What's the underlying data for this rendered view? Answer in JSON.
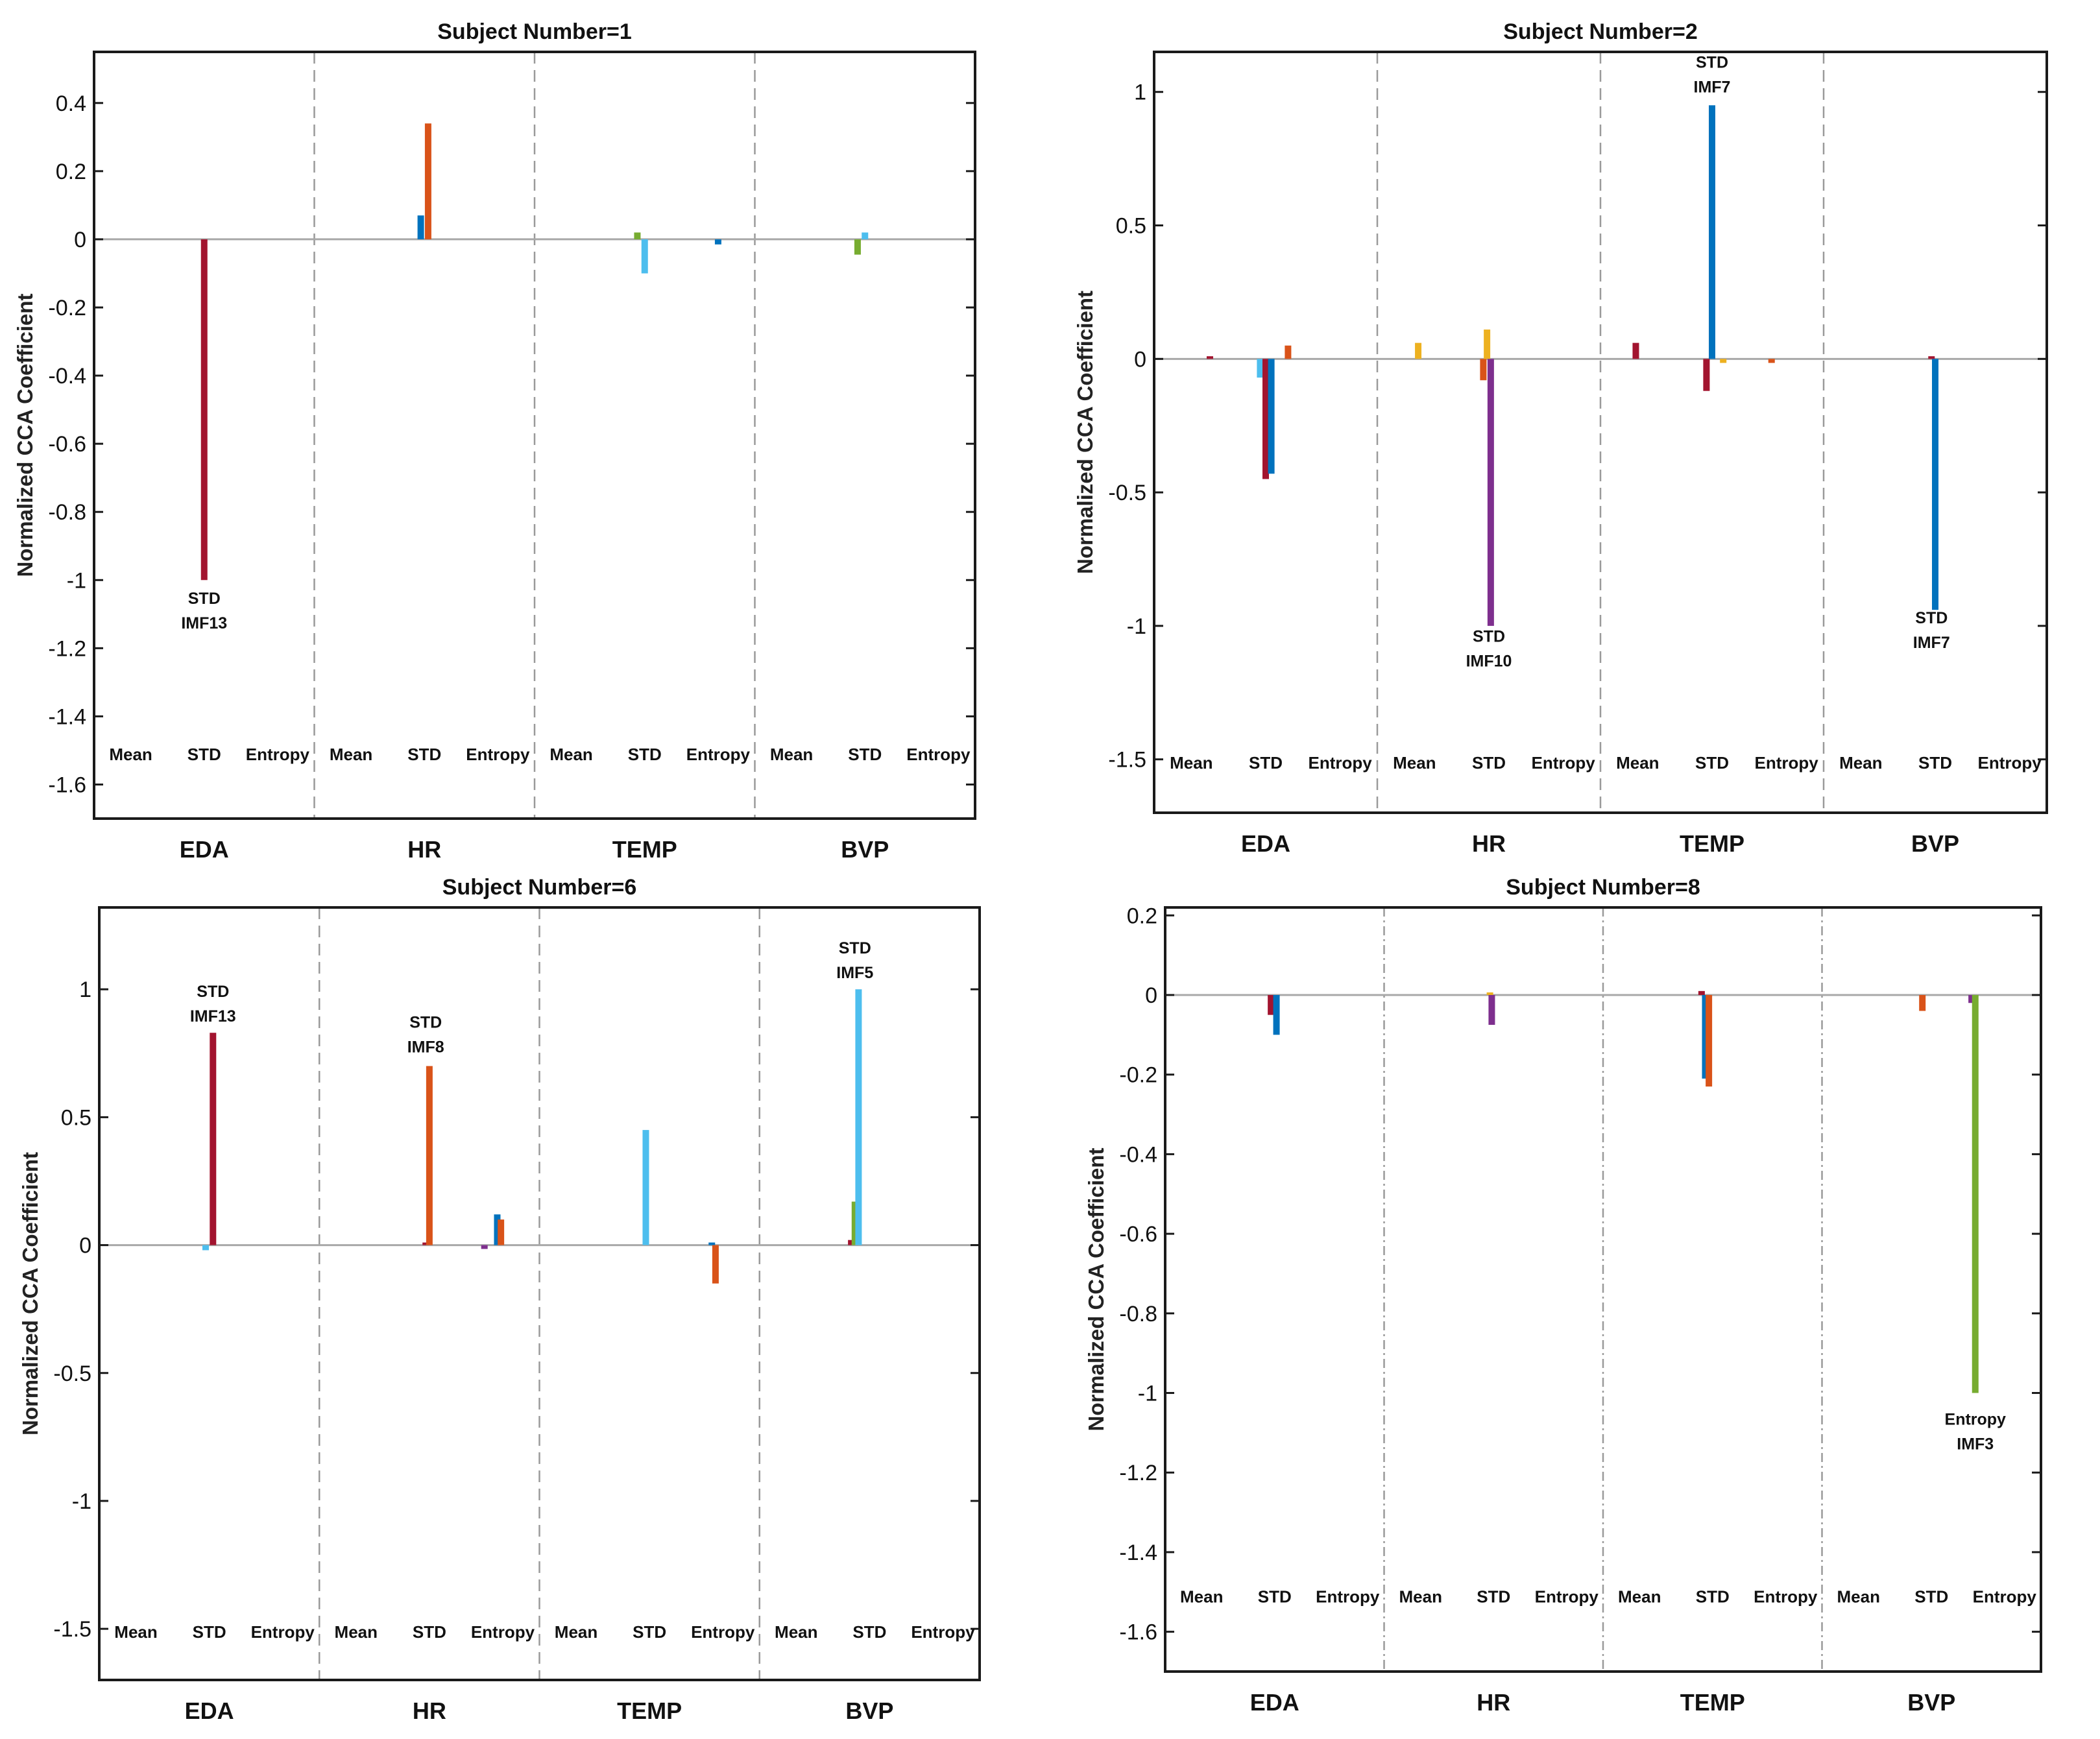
{
  "chart_data": [
    {
      "type": "bar",
      "title": "Subject Number=1",
      "ylabel": "Normalized CCA Coefficient",
      "ylim": [
        -1.7,
        0.55
      ],
      "yticks": [
        0.4,
        0.2,
        0,
        -0.2,
        -0.4,
        -0.6,
        -0.8,
        -1,
        -1.2,
        -1.4,
        -1.6
      ],
      "ytick_labels": [
        "0.4",
        "0.2",
        "0",
        "-0.2",
        "-0.4",
        "-0.6",
        "-0.8",
        "-1",
        "-1.2",
        "-1.4",
        "-1.6"
      ],
      "groups": [
        "EDA",
        "HR",
        "TEMP",
        "BVP"
      ],
      "features": [
        "Mean",
        "STD",
        "Entropy"
      ],
      "feature_label_y": -1.51,
      "separators": "dashed",
      "bars": [
        {
          "group": 0,
          "feature": 1,
          "pos": 0.0,
          "value": -1.0,
          "color": "#A2142F"
        },
        {
          "group": 1,
          "feature": 1,
          "pos": -0.1,
          "value": 0.07,
          "color": "#0072BD"
        },
        {
          "group": 1,
          "feature": 1,
          "pos": 0.1,
          "value": 0.34,
          "color": "#D95319"
        },
        {
          "group": 2,
          "feature": 1,
          "pos": -0.2,
          "value": 0.02,
          "color": "#77AC30"
        },
        {
          "group": 2,
          "feature": 1,
          "pos": 0.0,
          "value": -0.1,
          "color": "#4DBEEE"
        },
        {
          "group": 2,
          "feature": 2,
          "pos": 0.0,
          "value": -0.015,
          "color": "#0072BD"
        },
        {
          "group": 3,
          "feature": 1,
          "pos": -0.2,
          "value": -0.045,
          "color": "#77AC30"
        },
        {
          "group": 3,
          "feature": 1,
          "pos": 0.0,
          "value": 0.02,
          "color": "#4DBEEE"
        }
      ],
      "annotations": [
        {
          "lines": [
            "STD",
            "IMF13"
          ],
          "group": 0,
          "feature": 1,
          "y": -1.07,
          "dx": 0.0
        }
      ]
    },
    {
      "type": "bar",
      "title": "Subject Number=2",
      "ylabel": "Normalized CCA Coefficient",
      "ylim": [
        -1.7,
        1.15
      ],
      "yticks": [
        1,
        0.5,
        0,
        -0.5,
        -1,
        -1.5
      ],
      "ytick_labels": [
        "1",
        "0.5",
        "0",
        "-0.5",
        "-1",
        "-1.5"
      ],
      "groups": [
        "EDA",
        "HR",
        "TEMP",
        "BVP"
      ],
      "features": [
        "Mean",
        "STD",
        "Entropy"
      ],
      "feature_label_y": -1.51,
      "separators": "dashed",
      "bars": [
        {
          "group": 0,
          "feature": 0,
          "pos": 0.5,
          "value": 0.01,
          "color": "#A2142F"
        },
        {
          "group": 0,
          "feature": 1,
          "pos": -0.15,
          "value": -0.07,
          "color": "#4DBEEE"
        },
        {
          "group": 0,
          "feature": 1,
          "pos": 0.0,
          "value": -0.45,
          "color": "#A2142F"
        },
        {
          "group": 0,
          "feature": 1,
          "pos": 0.15,
          "value": -0.43,
          "color": "#0072BD"
        },
        {
          "group": 0,
          "feature": 1,
          "pos": 0.6,
          "value": 0.05,
          "color": "#D95319"
        },
        {
          "group": 1,
          "feature": 0,
          "pos": 0.1,
          "value": 0.06,
          "color": "#EDB120"
        },
        {
          "group": 1,
          "feature": 1,
          "pos": -0.15,
          "value": -0.08,
          "color": "#D95319"
        },
        {
          "group": 1,
          "feature": 1,
          "pos": -0.05,
          "value": 0.11,
          "color": "#EDB120"
        },
        {
          "group": 1,
          "feature": 1,
          "pos": 0.05,
          "value": -1.0,
          "color": "#7E2F8E"
        },
        {
          "group": 2,
          "feature": 0,
          "pos": -0.05,
          "value": 0.06,
          "color": "#A2142F"
        },
        {
          "group": 2,
          "feature": 1,
          "pos": -0.15,
          "value": -0.12,
          "color": "#A2142F"
        },
        {
          "group": 2,
          "feature": 1,
          "pos": 0.0,
          "value": 0.95,
          "color": "#0072BD"
        },
        {
          "group": 2,
          "feature": 1,
          "pos": 0.3,
          "value": -0.015,
          "color": "#EDB120"
        },
        {
          "group": 2,
          "feature": 2,
          "pos": -0.4,
          "value": -0.015,
          "color": "#D95319"
        },
        {
          "group": 3,
          "feature": 1,
          "pos": -0.1,
          "value": 0.01,
          "color": "#A2142F"
        },
        {
          "group": 3,
          "feature": 1,
          "pos": 0.0,
          "value": -0.94,
          "color": "#0072BD"
        }
      ],
      "annotations": [
        {
          "lines": [
            "STD",
            "IMF7"
          ],
          "group": 2,
          "feature": 1,
          "y": 1.09,
          "dx": 0.0
        },
        {
          "lines": [
            "STD",
            "IMF10"
          ],
          "group": 1,
          "feature": 1,
          "y": -1.06,
          "dx": 0.0
        },
        {
          "lines": [
            "STD",
            "IMF7"
          ],
          "group": 3,
          "feature": 1,
          "y": -0.99,
          "dx": -0.1
        }
      ]
    },
    {
      "type": "bar",
      "title": "Subject Number=6",
      "ylabel": "Normalized CCA Coefficient",
      "ylim": [
        -1.7,
        1.32
      ],
      "yticks": [
        1,
        0.5,
        0,
        -0.5,
        -1,
        -1.5
      ],
      "ytick_labels": [
        "1",
        "0.5",
        "0",
        "-0.5",
        "-1",
        "-1.5"
      ],
      "groups": [
        "EDA",
        "HR",
        "TEMP",
        "BVP"
      ],
      "features": [
        "Mean",
        "STD",
        "Entropy"
      ],
      "feature_label_y": -1.51,
      "separators": "dashed",
      "bars": [
        {
          "group": 0,
          "feature": 1,
          "pos": -0.1,
          "value": -0.02,
          "color": "#4DBEEE"
        },
        {
          "group": 0,
          "feature": 1,
          "pos": 0.1,
          "value": 0.83,
          "color": "#A2142F"
        },
        {
          "group": 1,
          "feature": 1,
          "pos": -0.1,
          "value": 0.01,
          "color": "#A2142F"
        },
        {
          "group": 1,
          "feature": 1,
          "pos": 0.0,
          "value": 0.7,
          "color": "#D95319"
        },
        {
          "group": 1,
          "feature": 2,
          "pos": -0.5,
          "value": -0.015,
          "color": "#7E2F8E"
        },
        {
          "group": 1,
          "feature": 2,
          "pos": -0.15,
          "value": 0.12,
          "color": "#0072BD"
        },
        {
          "group": 1,
          "feature": 2,
          "pos": -0.05,
          "value": 0.1,
          "color": "#D95319"
        },
        {
          "group": 2,
          "feature": 1,
          "pos": -0.1,
          "value": 0.45,
          "color": "#4DBEEE"
        },
        {
          "group": 2,
          "feature": 2,
          "pos": -0.3,
          "value": 0.01,
          "color": "#0072BD"
        },
        {
          "group": 2,
          "feature": 2,
          "pos": -0.2,
          "value": -0.15,
          "color": "#D95319"
        },
        {
          "group": 3,
          "feature": 1,
          "pos": -0.5,
          "value": 0.02,
          "color": "#A2142F"
        },
        {
          "group": 3,
          "feature": 1,
          "pos": -0.4,
          "value": 0.17,
          "color": "#77AC30"
        },
        {
          "group": 3,
          "feature": 1,
          "pos": -0.3,
          "value": 1.0,
          "color": "#4DBEEE"
        }
      ],
      "annotations": [
        {
          "lines": [
            "STD",
            "IMF13"
          ],
          "group": 0,
          "feature": 1,
          "y": 0.97,
          "dx": 0.1
        },
        {
          "lines": [
            "STD",
            "IMF8"
          ],
          "group": 1,
          "feature": 1,
          "y": 0.85,
          "dx": -0.1
        },
        {
          "lines": [
            "STD",
            "IMF5"
          ],
          "group": 3,
          "feature": 1,
          "y": 1.14,
          "dx": -0.4
        }
      ]
    },
    {
      "type": "bar",
      "title": "Subject Number=8",
      "ylabel": "Normalized CCA Coefficient",
      "ylim": [
        -1.7,
        0.22
      ],
      "yticks": [
        0.2,
        0,
        -0.2,
        -0.4,
        -0.6,
        -0.8,
        -1,
        -1.2,
        -1.4,
        -1.6
      ],
      "ytick_labels": [
        "0.2",
        "0",
        "-0.2",
        "-0.4",
        "-0.6",
        "-0.8",
        "-1",
        "-1.2",
        "-1.4",
        "-1.6"
      ],
      "groups": [
        "EDA",
        "HR",
        "TEMP",
        "BVP"
      ],
      "features": [
        "Mean",
        "STD",
        "Entropy"
      ],
      "feature_label_y": -1.51,
      "separators": "dashdot",
      "bars": [
        {
          "group": 0,
          "feature": 1,
          "pos": -0.1,
          "value": -0.05,
          "color": "#A2142F"
        },
        {
          "group": 0,
          "feature": 1,
          "pos": 0.05,
          "value": -0.1,
          "color": "#0072BD"
        },
        {
          "group": 1,
          "feature": 1,
          "pos": -0.1,
          "value": 0.005,
          "color": "#EDB120"
        },
        {
          "group": 1,
          "feature": 1,
          "pos": -0.05,
          "value": -0.075,
          "color": "#7E2F8E"
        },
        {
          "group": 2,
          "feature": 1,
          "pos": -0.3,
          "value": 0.01,
          "color": "#A2142F"
        },
        {
          "group": 2,
          "feature": 1,
          "pos": -0.2,
          "value": -0.21,
          "color": "#0072BD"
        },
        {
          "group": 2,
          "feature": 1,
          "pos": -0.1,
          "value": -0.23,
          "color": "#D95319"
        },
        {
          "group": 3,
          "feature": 1,
          "pos": -0.25,
          "value": -0.04,
          "color": "#D95319"
        },
        {
          "group": 3,
          "feature": 2,
          "pos": -0.9,
          "value": -0.02,
          "color": "#7E2F8E"
        },
        {
          "group": 3,
          "feature": 2,
          "pos": -0.8,
          "value": -1.0,
          "color": "#77AC30"
        }
      ],
      "annotations": [
        {
          "lines": [
            "Entropy",
            "IMF3"
          ],
          "group": 3,
          "feature": 2,
          "y": -1.08,
          "dx": -0.8
        }
      ]
    }
  ]
}
